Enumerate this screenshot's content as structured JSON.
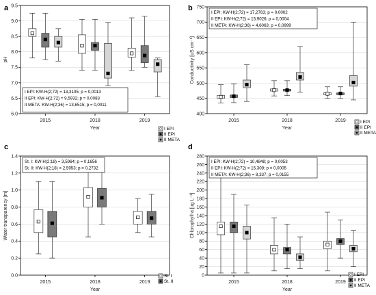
{
  "colors": {
    "white": "#ffffff",
    "grey": "#7a7a7a",
    "light": "#d6d6d6",
    "black": "#000000"
  },
  "chart_data": [
    {
      "type": "boxplot",
      "panel_label": "a",
      "xlabel": "Year",
      "ylabel": "pH",
      "ylim": [
        6.0,
        9.5
      ],
      "yticks": [
        "6.0",
        "6.5",
        "7.0",
        "7.5",
        "8.0",
        "8.5",
        "9.0",
        "9.5"
      ],
      "categories": [
        "2015",
        "2018",
        "2019"
      ],
      "series": [
        {
          "name": "I EPI",
          "style": "white",
          "boxes": [
            {
              "median": 8.6,
              "q1": 8.5,
              "q3": 8.75,
              "min": 7.8,
              "max": 9.25
            },
            {
              "median": 8.2,
              "q1": 7.95,
              "q3": 8.55,
              "min": 7.4,
              "max": 9.05
            },
            {
              "median": 7.95,
              "q1": 7.83,
              "q3": 8.12,
              "min": 7.4,
              "max": 9.1
            }
          ]
        },
        {
          "name": "II EPI",
          "style": "grey",
          "boxes": [
            {
              "median": 8.4,
              "q1": 8.15,
              "q3": 8.6,
              "min": 7.75,
              "max": 9.25
            },
            {
              "median": 8.2,
              "q1": 8.05,
              "q3": 8.3,
              "min": 7.4,
              "max": 9.05
            },
            {
              "median": 7.88,
              "q1": 7.65,
              "q3": 8.2,
              "min": 7.5,
              "max": 9.15
            }
          ]
        },
        {
          "name": "II META",
          "style": "light",
          "boxes": [
            {
              "median": 8.3,
              "q1": 8.15,
              "q3": 8.5,
              "min": 7.7,
              "max": 8.75
            },
            {
              "median": 7.3,
              "q1": 7.15,
              "q3": 8.27,
              "min": 6.9,
              "max": 8.95
            },
            {
              "median": 7.6,
              "q1": 7.35,
              "q3": 7.75,
              "min": 6.55,
              "max": 7.8
            }
          ]
        }
      ],
      "stats": [
        "I EPI:  KW-H(2;72) = 13,3105; p = 0,0013",
        "II EPI:  KW-H(2;72) = 9,5932; p = 0,0083",
        "II META:  KW-H(2;36) = 13,6515; p = 0,0011"
      ],
      "stats_pos": "bottom-left",
      "legend": [
        "I EPI",
        "II EPI",
        "II META"
      ]
    },
    {
      "type": "boxplot",
      "panel_label": "b",
      "xlabel": "Year",
      "ylabel": "Conductivity [uS cm⁻¹]",
      "ylim": [
        400,
        750
      ],
      "yticks": [
        "400",
        "450",
        "500",
        "550",
        "600",
        "650",
        "700",
        "750"
      ],
      "categories": [
        "2015",
        "2018",
        "2019"
      ],
      "series": [
        {
          "name": "I EPI",
          "style": "white",
          "boxes": [
            {
              "median": 455,
              "q1": 450,
              "q3": 460,
              "min": 435,
              "max": 495
            },
            {
              "median": 477,
              "q1": 474,
              "q3": 481,
              "min": 458,
              "max": 508
            },
            {
              "median": 465,
              "q1": 462,
              "q3": 468,
              "min": 450,
              "max": 488
            }
          ]
        },
        {
          "name": "II EPI",
          "style": "grey",
          "boxes": [
            {
              "median": 457,
              "q1": 453,
              "q3": 461,
              "min": 436,
              "max": 497
            },
            {
              "median": 477,
              "q1": 474,
              "q3": 480,
              "min": 459,
              "max": 508
            },
            {
              "median": 466,
              "q1": 462,
              "q3": 468,
              "min": 450,
              "max": 488
            }
          ]
        },
        {
          "name": "II META",
          "style": "light",
          "boxes": [
            {
              "median": 495,
              "q1": 485,
              "q3": 510,
              "min": 440,
              "max": 560
            },
            {
              "median": 520,
              "q1": 510,
              "q3": 535,
              "min": 470,
              "max": 620
            },
            {
              "median": 502,
              "q1": 490,
              "q3": 525,
              "min": 445,
              "max": 700
            }
          ]
        }
      ],
      "stats": [
        "I EPI:  KW-H(2;72) = 17,2763; p = 0,0002",
        "II EPI:  KW-H(2;72) = 15,9026; p = 0,0004",
        "II META:  KW-H(2;36) = 4,6063; p = 0,0999"
      ],
      "stats_pos": "top-left",
      "legend": [
        "I EPI",
        "II EPI",
        "II META"
      ]
    },
    {
      "type": "boxplot",
      "panel_label": "c",
      "xlabel": "Year",
      "ylabel": "Water transparency [m]",
      "ylim": [
        0.0,
        1.4
      ],
      "yticks": [
        "0.0",
        "0.2",
        "0.4",
        "0.6",
        "0.8",
        "1.0",
        "1.2",
        "1.4"
      ],
      "categories": [
        "2015",
        "2018",
        "2019"
      ],
      "series": [
        {
          "name": "St. I",
          "style": "white",
          "boxes": [
            {
              "median": 0.63,
              "q1": 0.5,
              "q3": 0.77,
              "min": 0.25,
              "max": 1.1
            },
            {
              "median": 0.92,
              "q1": 0.8,
              "q3": 1.03,
              "min": 0.45,
              "max": 1.25
            },
            {
              "median": 0.68,
              "q1": 0.6,
              "q3": 0.75,
              "min": 0.5,
              "max": 0.9
            }
          ]
        },
        {
          "name": "St. II",
          "style": "grey",
          "boxes": [
            {
              "median": 0.61,
              "q1": 0.45,
              "q3": 0.75,
              "min": 0.2,
              "max": 1.1
            },
            {
              "median": 0.91,
              "q1": 0.8,
              "q3": 1.02,
              "min": 0.6,
              "max": 1.25
            },
            {
              "median": 0.67,
              "q1": 0.6,
              "q3": 0.75,
              "min": 0.45,
              "max": 0.95
            }
          ]
        }
      ],
      "stats": [
        "St. I:  KW-H(2;18) = 3,5964; p = 0,1656",
        "St. II:  KW-H(2;18) = 2,5953; p = 0,2732"
      ],
      "stats_pos": "top-left",
      "legend": [
        "St. I",
        "St. II"
      ]
    },
    {
      "type": "boxplot",
      "panel_label": "d",
      "xlabel": "Year",
      "ylabel": "Chlorophyll-a [ug L⁻¹]",
      "ylim": [
        0,
        280
      ],
      "yticks": [
        "0",
        "20",
        "40",
        "60",
        "80",
        "100",
        "120",
        "140",
        "160",
        "180",
        "200",
        "220",
        "240",
        "260",
        "280"
      ],
      "categories": [
        "2015",
        "2018",
        "2019"
      ],
      "series": [
        {
          "name": "I EPI",
          "style": "white",
          "boxes": [
            {
              "median": 115,
              "q1": 95,
              "q3": 125,
              "min": 5,
              "max": 250
            },
            {
              "median": 60,
              "q1": 50,
              "q3": 70,
              "min": 10,
              "max": 135
            },
            {
              "median": 72,
              "q1": 62,
              "q3": 80,
              "min": 10,
              "max": 148
            }
          ]
        },
        {
          "name": "II EPI",
          "style": "grey",
          "boxes": [
            {
              "median": 115,
              "q1": 100,
              "q3": 125,
              "min": 5,
              "max": 190
            },
            {
              "median": 60,
              "q1": 50,
              "q3": 65,
              "min": 15,
              "max": 120
            },
            {
              "median": 80,
              "q1": 72,
              "q3": 86,
              "min": 40,
              "max": 130
            }
          ]
        },
        {
          "name": "II META",
          "style": "light",
          "boxes": [
            {
              "median": 100,
              "q1": 85,
              "q3": 115,
              "min": 5,
              "max": 165
            },
            {
              "median": 42,
              "q1": 35,
              "q3": 50,
              "min": 15,
              "max": 90
            },
            {
              "median": 62,
              "q1": 55,
              "q3": 70,
              "min": 20,
              "max": 105
            }
          ]
        }
      ],
      "stats": [
        "I EPI:  KW-H(2;72) = 10,4848; p = 0,0053",
        "II EPI:  KW-H(2;72) = 15,309; p = 0,0005",
        "II META:  KW-H(2;36) = 8,337; p = 0,0155"
      ],
      "stats_pos": "top-left",
      "legend": [
        "I EPI",
        "II EPI",
        "II META"
      ]
    }
  ]
}
